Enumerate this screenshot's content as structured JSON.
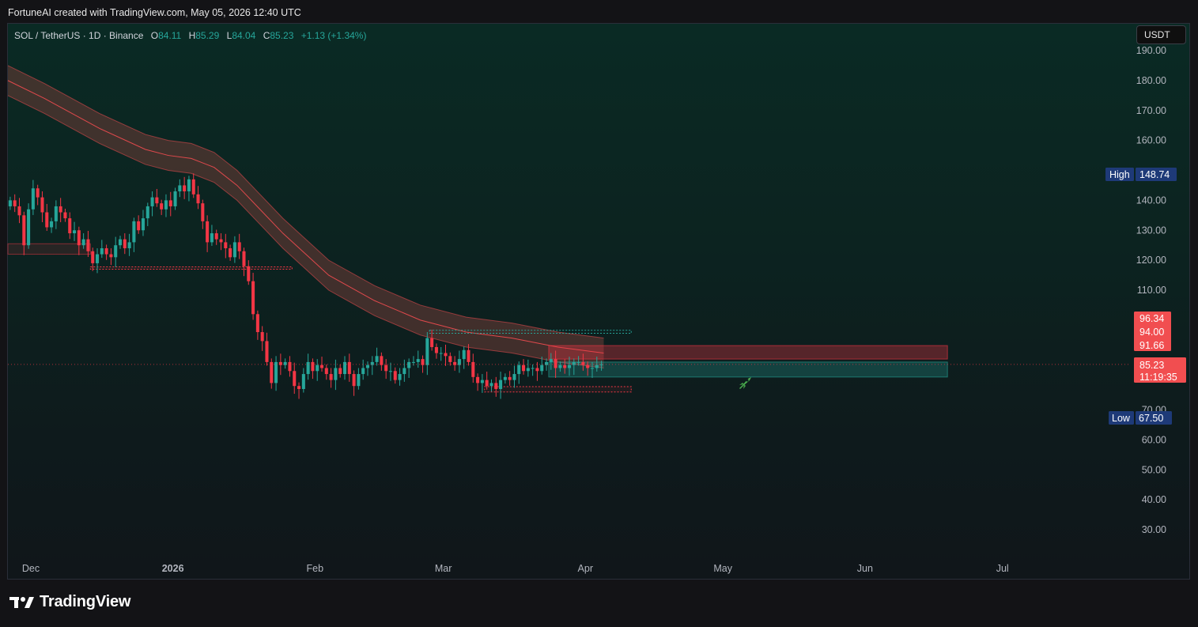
{
  "credit": "FortuneAI created with TradingView.com, May 05, 2026 12:40 UTC",
  "legend": {
    "symbol": "SOL / TetherUS · 1D · Binance",
    "o_label": "O",
    "o_val": "84.11",
    "h_label": "H",
    "h_val": "85.29",
    "l_label": "L",
    "l_val": "84.04",
    "c_label": "C",
    "c_val": "85.23",
    "change": "+1.13 (+1.34%)"
  },
  "currency_button": "USDT",
  "brand": "TradingView",
  "colors": {
    "up": "#26a69a",
    "down": "#f23645",
    "band": "#e0494c",
    "badge_red": "#f14e50",
    "badge_blue": "#1e3a78"
  },
  "chart_data": {
    "type": "candlestick",
    "symbol": "SOL / TetherUS",
    "interval": "1D",
    "exchange": "Binance",
    "ylim": [
      25,
      195
    ],
    "y_ticks": [
      190,
      180,
      170,
      160,
      140,
      130,
      120,
      110,
      70,
      60,
      50,
      40,
      30
    ],
    "y_tick_labels": [
      "190.00",
      "180.00",
      "170.00",
      "160.00",
      "140.00",
      "130.00",
      "120.00",
      "110.00",
      "70.00",
      "60.00",
      "50.00",
      "40.00",
      "30.00"
    ],
    "x_ticks": [
      {
        "label": "Dec",
        "date": "2025-12-01"
      },
      {
        "label": "2026",
        "date": "2026-01-01",
        "bold": true
      },
      {
        "label": "Feb",
        "date": "2026-02-01"
      },
      {
        "label": "Mar",
        "date": "2026-03-01"
      },
      {
        "label": "Apr",
        "date": "2026-04-01"
      },
      {
        "label": "May",
        "date": "2026-05-01"
      },
      {
        "label": "Jun",
        "date": "2026-06-01"
      },
      {
        "label": "Jul",
        "date": "2026-07-01"
      }
    ],
    "x_start": "2025-11-26",
    "x_end": "2026-07-29",
    "high": {
      "label": "High",
      "value": "148.74"
    },
    "low": {
      "label": "Low",
      "value": "67.50"
    },
    "price_labels": [
      {
        "value": 96.34,
        "text": "96.34"
      },
      {
        "value": 94.0,
        "text": "94.00"
      },
      {
        "value": 91.66,
        "text": "91.66"
      }
    ],
    "last_price": {
      "value": 85.23,
      "text": "85.23",
      "countdown": "11:19:35"
    },
    "closes": [
      140,
      138,
      135,
      125,
      137,
      144,
      141,
      136,
      131,
      133,
      138,
      136,
      134,
      129,
      130,
      125,
      127,
      123,
      119,
      122,
      124,
      122,
      121,
      125,
      127,
      124,
      126,
      133,
      130,
      134,
      138,
      141,
      139,
      137,
      140,
      138,
      143,
      145,
      143,
      147,
      142,
      139,
      133,
      126,
      129,
      127,
      126,
      124,
      121,
      126,
      123,
      118,
      113,
      102,
      96,
      93,
      86,
      79,
      86,
      85,
      86,
      83,
      78,
      77,
      82,
      86,
      83,
      85,
      84,
      82,
      80,
      84,
      82,
      86,
      82,
      78,
      82,
      84,
      85,
      86,
      88,
      85,
      83,
      83,
      80,
      82,
      84,
      86,
      86,
      87,
      85,
      94,
      91,
      89,
      89,
      88,
      86,
      85,
      87,
      90,
      86,
      81,
      79,
      80,
      78,
      79,
      77,
      80,
      81,
      80,
      82,
      85,
      83,
      84,
      84,
      83,
      85,
      86,
      87,
      84,
      85,
      84,
      85,
      86,
      86,
      85,
      84,
      84,
      85,
      85.23
    ],
    "band": {
      "mid": [
        [
          0,
          180
        ],
        [
          8,
          174
        ],
        [
          20,
          164
        ],
        [
          30,
          157
        ],
        [
          35,
          155
        ],
        [
          40,
          154
        ],
        [
          45,
          151
        ],
        [
          50,
          145
        ],
        [
          55,
          137
        ],
        [
          60,
          129
        ],
        [
          65,
          122
        ],
        [
          70,
          115
        ],
        [
          80,
          106.5
        ],
        [
          90,
          100
        ],
        [
          100,
          96
        ],
        [
          110,
          94
        ],
        [
          120,
          91
        ],
        [
          130,
          89
        ]
      ],
      "half_width": 5
    },
    "zones": [
      {
        "from": 0,
        "to": 18,
        "lo": 122,
        "hi": 125.5,
        "kind": "red"
      },
      {
        "from": 18,
        "to": 62,
        "lo": 117,
        "hi": 117.8,
        "kind": "red-dotted"
      },
      {
        "from": 92,
        "to": 136,
        "lo": 95.6,
        "hi": 96.6,
        "kind": "green-dotted"
      },
      {
        "from": 104,
        "to": 136,
        "lo": 76,
        "hi": 77.8,
        "kind": "red-dotted"
      },
      {
        "from": 118,
        "to": 205,
        "lo": 87,
        "hi": 91.5,
        "kind": "red-fill"
      },
      {
        "from": 118,
        "to": 205,
        "lo": 81,
        "hi": 86,
        "kind": "green-fill"
      }
    ]
  }
}
